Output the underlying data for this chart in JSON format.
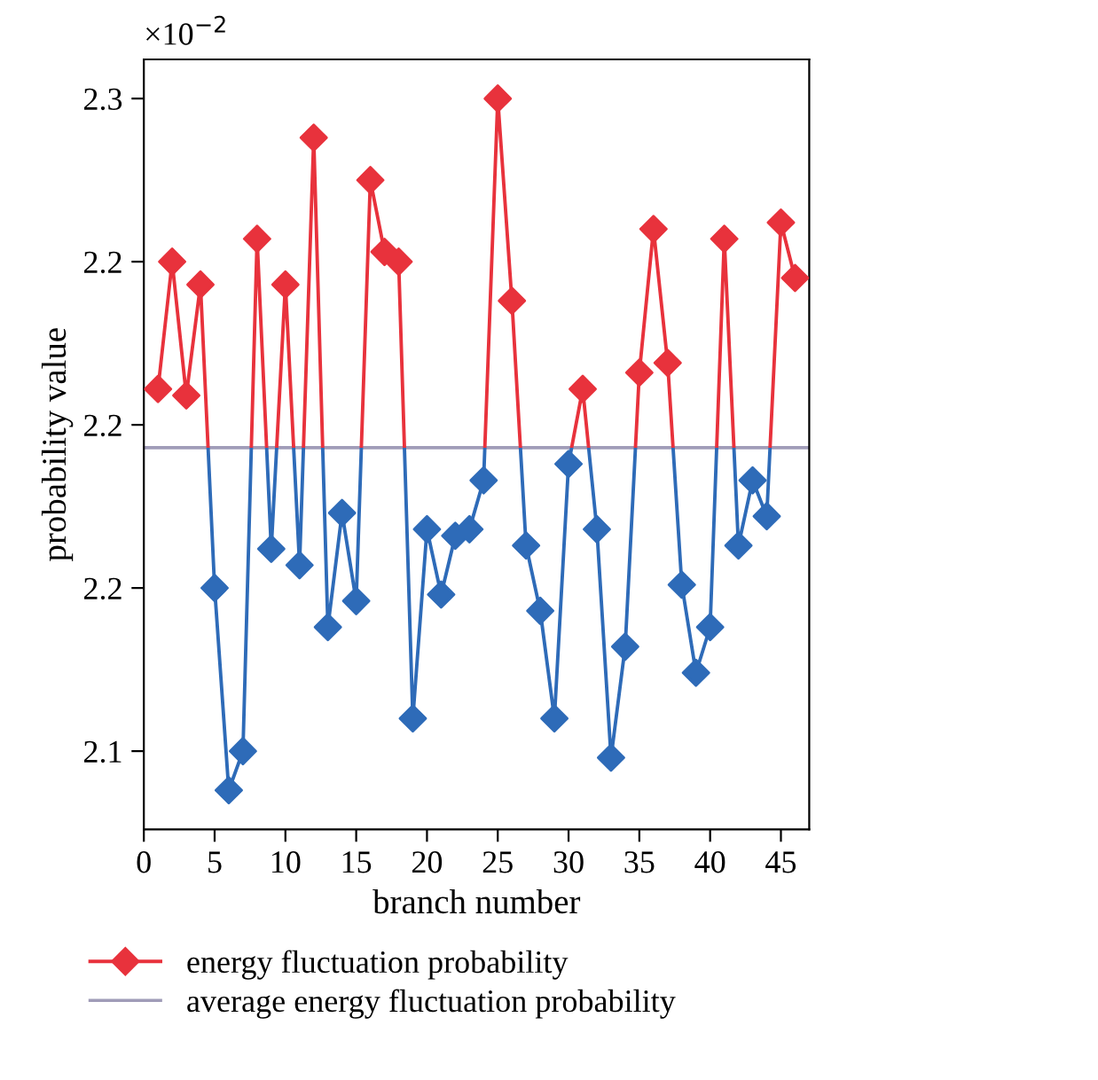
{
  "chart_data": {
    "type": "line",
    "xlabel": "branch number",
    "ylabel": "probability value",
    "annotations": [
      "×10$^{−2}$"
    ],
    "x": [
      1,
      2,
      3,
      4,
      5,
      6,
      7,
      8,
      9,
      10,
      11,
      12,
      13,
      14,
      15,
      16,
      17,
      18,
      19,
      20,
      21,
      22,
      23,
      24,
      25,
      26,
      27,
      28,
      29,
      30,
      31,
      32,
      33,
      34,
      35,
      36,
      37,
      38,
      39,
      40,
      41,
      42,
      43,
      44,
      45,
      46
    ],
    "series": [
      {
        "name": "energy fluctuation probability",
        "color": "#e8323c",
        "values": [
          2.211,
          2.25,
          2.209,
          2.243,
          2.15,
          2.088,
          2.1,
          2.257,
          2.162,
          2.243,
          2.157,
          2.288,
          2.138,
          2.173,
          2.146,
          2.275,
          2.253,
          2.25,
          2.11,
          2.168,
          2.148,
          2.166,
          2.168,
          2.183,
          2.3,
          2.238,
          2.163,
          2.143,
          2.11,
          2.188,
          2.211,
          2.168,
          2.098,
          2.132,
          2.216,
          2.26,
          2.219,
          2.151,
          2.124,
          2.138,
          2.257,
          2.163,
          2.183,
          2.172,
          2.262,
          2.245
        ],
        "colors": [
          "#e8323c",
          "#e8323c",
          "#e8323c",
          "#e8323c",
          "#2e6bb8",
          "#2e6bb8",
          "#2e6bb8",
          "#e8323c",
          "#2e6bb8",
          "#e8323c",
          "#2e6bb8",
          "#e8323c",
          "#2e6bb8",
          "#2e6bb8",
          "#2e6bb8",
          "#e8323c",
          "#e8323c",
          "#e8323c",
          "#2e6bb8",
          "#2e6bb8",
          "#2e6bb8",
          "#2e6bb8",
          "#2e6bb8",
          "#2e6bb8",
          "#e8323c",
          "#e8323c",
          "#2e6bb8",
          "#2e6bb8",
          "#2e6bb8",
          "#2e6bb8",
          "#e8323c",
          "#2e6bb8",
          "#2e6bb8",
          "#2e6bb8",
          "#e8323c",
          "#e8323c",
          "#e8323c",
          "#2e6bb8",
          "#2e6bb8",
          "#2e6bb8",
          "#e8323c",
          "#2e6bb8",
          "#2e6bb8",
          "#2e6bb8",
          "#e8323c",
          "#e8323c"
        ]
      }
    ],
    "ref_lines": [
      {
        "axis": "y",
        "value": 2.193,
        "label": "average energy fluctuation probability",
        "color": "#a09cb8"
      }
    ],
    "xlim": [
      0,
      47
    ],
    "xticks": [
      0,
      5,
      10,
      15,
      20,
      25,
      30,
      35,
      40,
      45
    ],
    "ylim": [
      2.076,
      2.312
    ],
    "yticks": [
      2.1,
      {
        "value": 2.15,
        "label": "2.2"
      },
      2.2,
      {
        "value": 2.25,
        "label": "2.2"
      },
      2.3
    ],
    "marker": "diamond",
    "line_style": "solid",
    "grid": false,
    "legend": "bottom"
  }
}
